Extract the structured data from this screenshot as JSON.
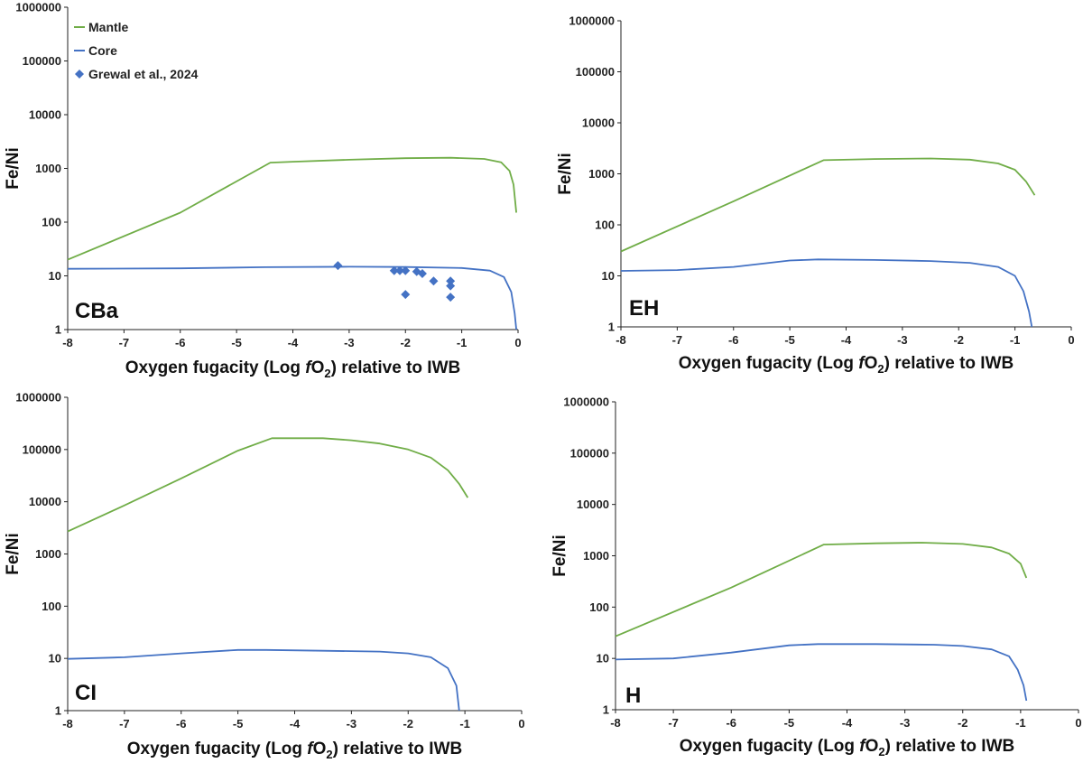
{
  "colors": {
    "mantle": "#70AD47",
    "core": "#4472C4",
    "grewal": "#4472C4",
    "axis": "#222222"
  },
  "chart_data": [
    {
      "type": "line",
      "panel_label": "CBa",
      "xlabel_parts": [
        "Oxygen fugacity (Log ",
        "f",
        "O",
        "2",
        ") relative to IWB"
      ],
      "ylabel": "Fe/Ni",
      "xlim": [
        -8,
        0
      ],
      "ylim": [
        1,
        1000000
      ],
      "yscale": "log",
      "x_ticks": [
        "-8",
        "-7",
        "-6",
        "-5",
        "-4",
        "-3",
        "-2",
        "-1",
        "0"
      ],
      "y_ticks": [
        "1",
        "10",
        "100",
        "1000",
        "10000",
        "100000",
        "1000000"
      ],
      "legend": [
        "Mantle",
        "Core",
        "Grewal et al., 2024"
      ],
      "series": [
        {
          "name": "Mantle",
          "style": "line",
          "points": [
            [
              -8,
              20
            ],
            [
              -6,
              150
            ],
            [
              -4.4,
              1280
            ],
            [
              -4,
              1330
            ],
            [
              -3,
              1450
            ],
            [
              -2,
              1550
            ],
            [
              -1.2,
              1580
            ],
            [
              -0.6,
              1500
            ],
            [
              -0.3,
              1300
            ],
            [
              -0.15,
              900
            ],
            [
              -0.08,
              500
            ],
            [
              -0.03,
              150
            ]
          ]
        },
        {
          "name": "Core",
          "style": "line",
          "points": [
            [
              -8,
              13.5
            ],
            [
              -6,
              13.8
            ],
            [
              -4.5,
              14.5
            ],
            [
              -3,
              14.8
            ],
            [
              -2,
              14.6
            ],
            [
              -1,
              14
            ],
            [
              -0.5,
              12.5
            ],
            [
              -0.25,
              9.5
            ],
            [
              -0.12,
              5
            ],
            [
              -0.06,
              2
            ],
            [
              -0.03,
              1
            ]
          ]
        },
        {
          "name": "Grewal et al., 2024",
          "style": "scatter",
          "points": [
            [
              -3.2,
              15.5
            ],
            [
              -2.2,
              12.5
            ],
            [
              -2.1,
              12.5
            ],
            [
              -2.0,
              12.5
            ],
            [
              -1.8,
              12
            ],
            [
              -1.7,
              11
            ],
            [
              -2.0,
              4.5
            ],
            [
              -1.5,
              8
            ],
            [
              -1.2,
              8
            ],
            [
              -1.2,
              6.5
            ],
            [
              -1.2,
              4
            ]
          ]
        }
      ]
    },
    {
      "type": "line",
      "panel_label": "EH",
      "xlabel_parts": [
        "Oxygen fugacity (Log ",
        "f",
        "O",
        "2",
        ") relative to IWB"
      ],
      "ylabel": "Fe/Ni",
      "xlim": [
        -8,
        0
      ],
      "ylim": [
        1,
        1000000
      ],
      "yscale": "log",
      "x_ticks": [
        "-8",
        "-7",
        "-6",
        "-5",
        "-4",
        "-3",
        "-2",
        "-1",
        "0"
      ],
      "y_ticks": [
        "1",
        "10",
        "100",
        "1000",
        "10000",
        "100000",
        "1000000"
      ],
      "legend": [],
      "series": [
        {
          "name": "Mantle",
          "style": "line",
          "points": [
            [
              -8,
              30
            ],
            [
              -6,
              290
            ],
            [
              -4.4,
              1850
            ],
            [
              -3.5,
              1950
            ],
            [
              -2.5,
              2000
            ],
            [
              -1.8,
              1900
            ],
            [
              -1.3,
              1600
            ],
            [
              -1.0,
              1200
            ],
            [
              -0.8,
              700
            ],
            [
              -0.65,
              380
            ]
          ]
        },
        {
          "name": "Core",
          "style": "line",
          "points": [
            [
              -8,
              12.5
            ],
            [
              -7,
              13
            ],
            [
              -6,
              15
            ],
            [
              -5,
              20
            ],
            [
              -4.5,
              21
            ],
            [
              -3.5,
              20.5
            ],
            [
              -2.5,
              19.5
            ],
            [
              -1.8,
              18
            ],
            [
              -1.3,
              15
            ],
            [
              -1.0,
              10
            ],
            [
              -0.85,
              5
            ],
            [
              -0.75,
              2
            ],
            [
              -0.7,
              1
            ]
          ]
        }
      ]
    },
    {
      "type": "line",
      "panel_label": "CI",
      "xlabel_parts": [
        "Oxygen fugacity (Log ",
        "f",
        "O",
        "2",
        ") relative to IWB"
      ],
      "ylabel": "Fe/Ni",
      "xlim": [
        -8,
        0
      ],
      "ylim": [
        1,
        1000000
      ],
      "yscale": "log",
      "x_ticks": [
        "-8",
        "-7",
        "-6",
        "-5",
        "-4",
        "-3",
        "-2",
        "-1",
        "0"
      ],
      "y_ticks": [
        "1",
        "10",
        "100",
        "1000",
        "10000",
        "100000",
        "1000000"
      ],
      "legend": [],
      "series": [
        {
          "name": "Mantle",
          "style": "line",
          "points": [
            [
              -8,
              2700
            ],
            [
              -7,
              8500
            ],
            [
              -6,
              28000
            ],
            [
              -5,
              95000
            ],
            [
              -4.4,
              165000
            ],
            [
              -3.5,
              165000
            ],
            [
              -3,
              150000
            ],
            [
              -2.5,
              130000
            ],
            [
              -2,
              100000
            ],
            [
              -1.6,
              70000
            ],
            [
              -1.3,
              40000
            ],
            [
              -1.1,
              22000
            ],
            [
              -0.95,
              12000
            ]
          ]
        },
        {
          "name": "Core",
          "style": "line",
          "points": [
            [
              -8,
              9.8
            ],
            [
              -7,
              10.5
            ],
            [
              -6,
              12.5
            ],
            [
              -5,
              14.5
            ],
            [
              -4.5,
              14.5
            ],
            [
              -3.5,
              14
            ],
            [
              -2.5,
              13.5
            ],
            [
              -2,
              12.5
            ],
            [
              -1.6,
              10.5
            ],
            [
              -1.3,
              6.5
            ],
            [
              -1.15,
              3
            ],
            [
              -1.1,
              1
            ]
          ]
        }
      ]
    },
    {
      "type": "line",
      "panel_label": "H",
      "xlabel_parts": [
        "Oxygen fugacity (Log ",
        "f",
        "O",
        "2",
        ") relative to IWB"
      ],
      "ylabel": "Fe/Ni",
      "xlim": [
        -8,
        0
      ],
      "ylim": [
        1,
        1000000
      ],
      "yscale": "log",
      "x_ticks": [
        "-8",
        "-7",
        "-6",
        "-5",
        "-4",
        "-3",
        "-2",
        "-1",
        "0"
      ],
      "y_ticks": [
        "1",
        "10",
        "100",
        "1000",
        "10000",
        "100000",
        "1000000"
      ],
      "legend": [],
      "series": [
        {
          "name": "Mantle",
          "style": "line",
          "points": [
            [
              -8,
              27
            ],
            [
              -6,
              240
            ],
            [
              -4.4,
              1650
            ],
            [
              -3.5,
              1750
            ],
            [
              -2.7,
              1800
            ],
            [
              -2,
              1700
            ],
            [
              -1.5,
              1450
            ],
            [
              -1.2,
              1100
            ],
            [
              -1.0,
              700
            ],
            [
              -0.9,
              370
            ]
          ]
        },
        {
          "name": "Core",
          "style": "line",
          "points": [
            [
              -8,
              9.5
            ],
            [
              -7,
              10
            ],
            [
              -6,
              13
            ],
            [
              -5,
              18
            ],
            [
              -4.5,
              19
            ],
            [
              -3.5,
              19
            ],
            [
              -2.5,
              18.5
            ],
            [
              -2,
              17.5
            ],
            [
              -1.5,
              15
            ],
            [
              -1.2,
              11
            ],
            [
              -1.05,
              6
            ],
            [
              -0.95,
              3
            ],
            [
              -0.9,
              1.5
            ]
          ]
        }
      ]
    }
  ]
}
